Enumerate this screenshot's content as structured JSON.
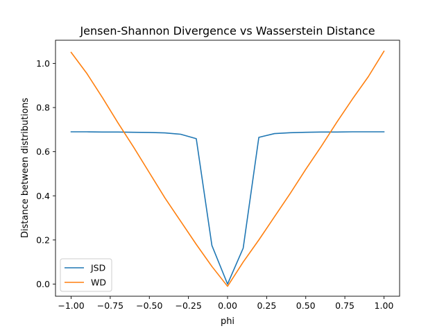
{
  "chart_data": {
    "type": "line",
    "title": "Jensen-Shannon Divergence vs Wasserstein Distance",
    "xlabel": "phi",
    "ylabel": "Distance between distributions",
    "xlim": [
      -1.1,
      1.1
    ],
    "ylim": [
      -0.055,
      1.105
    ],
    "xticks": [
      -1.0,
      -0.75,
      -0.5,
      -0.25,
      0.0,
      0.25,
      0.5,
      0.75,
      1.0
    ],
    "xtick_labels": [
      "−1.00",
      "−0.75",
      "−0.50",
      "−0.25",
      "0.00",
      "0.25",
      "0.50",
      "0.75",
      "1.00"
    ],
    "yticks": [
      0.0,
      0.2,
      0.4,
      0.6,
      0.8,
      1.0
    ],
    "ytick_labels": [
      "0.0",
      "0.2",
      "0.4",
      "0.6",
      "0.8",
      "1.0"
    ],
    "grid": false,
    "legend_position": "lower-left",
    "series": [
      {
        "name": "JSD",
        "color": "#1f77b4",
        "x": [
          -1.0,
          -0.9,
          -0.8,
          -0.7,
          -0.6,
          -0.5,
          -0.4,
          -0.3,
          -0.2,
          -0.1,
          0.0,
          0.1,
          0.2,
          0.3,
          0.4,
          0.5,
          0.6,
          0.7,
          0.8,
          0.9,
          1.0
        ],
        "y": [
          0.69,
          0.69,
          0.689,
          0.689,
          0.688,
          0.687,
          0.685,
          0.679,
          0.659,
          0.175,
          0.0,
          0.163,
          0.665,
          0.682,
          0.686,
          0.688,
          0.689,
          0.689,
          0.69,
          0.69,
          0.69
        ]
      },
      {
        "name": "WD",
        "color": "#ff7f0e",
        "x": [
          -1.0,
          -0.9,
          -0.8,
          -0.7,
          -0.6,
          -0.5,
          -0.4,
          -0.3,
          -0.2,
          -0.1,
          0.0,
          0.1,
          0.2,
          0.3,
          0.4,
          0.5,
          0.6,
          0.7,
          0.8,
          0.9,
          1.0
        ],
        "y": [
          1.05,
          0.955,
          0.845,
          0.73,
          0.62,
          0.505,
          0.39,
          0.285,
          0.18,
          0.08,
          -0.01,
          0.1,
          0.2,
          0.305,
          0.41,
          0.52,
          0.625,
          0.735,
          0.84,
          0.94,
          1.055
        ]
      }
    ]
  }
}
